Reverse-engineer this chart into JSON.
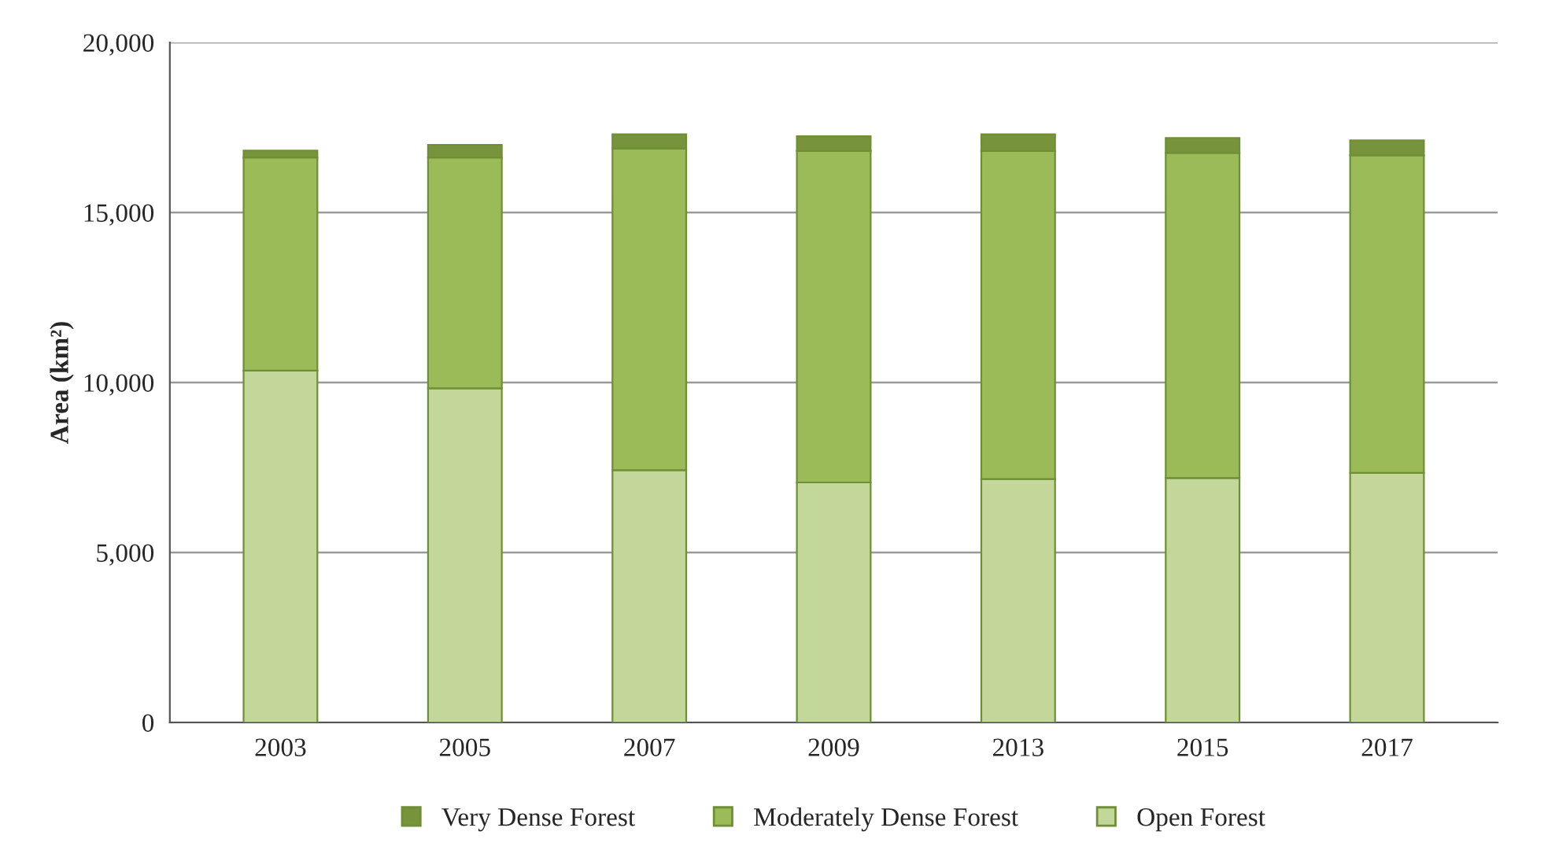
{
  "chart_data": {
    "type": "bar",
    "stacked": true,
    "ylabel": "Area (km²)",
    "categories": [
      "2003",
      "2005",
      "2007",
      "2009",
      "2013",
      "2015",
      "2017"
    ],
    "series": [
      {
        "name": "Open Forest",
        "color": "#c4d79b",
        "values": [
          10350,
          9830,
          7420,
          7060,
          7160,
          7190,
          7340
        ]
      },
      {
        "name": "Moderately Dense Forest",
        "color": "#9bbb59",
        "values": [
          6270,
          6790,
          9460,
          9750,
          9650,
          9560,
          9340
        ]
      },
      {
        "name": "Very Dense Forest",
        "color": "#77933c",
        "values": [
          200,
          370,
          420,
          430,
          490,
          440,
          440
        ]
      }
    ],
    "ylim": [
      0,
      20000
    ],
    "yticks": [
      {
        "value": 0,
        "label": "0"
      },
      {
        "value": 5000,
        "label": "5,000"
      },
      {
        "value": 10000,
        "label": "10,000"
      },
      {
        "value": 15000,
        "label": "15,000"
      },
      {
        "value": 20000,
        "label": "20,000"
      }
    ],
    "grid": "y",
    "legend": "bottom"
  }
}
